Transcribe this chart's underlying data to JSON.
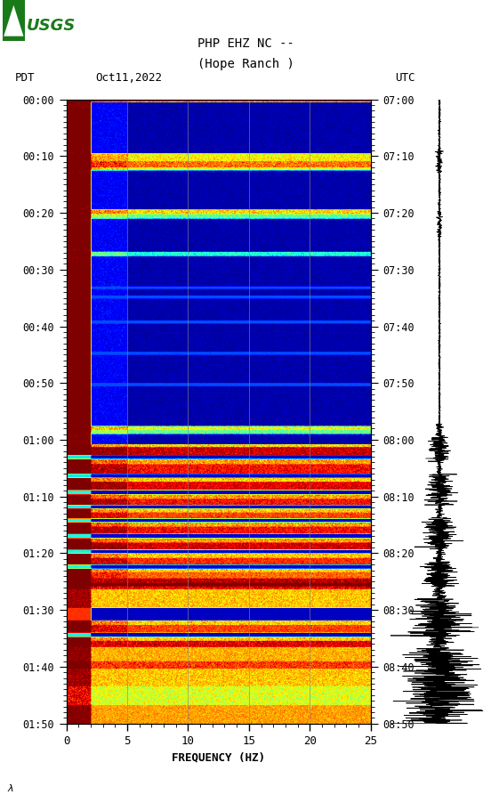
{
  "title_line1": "PHP EHZ NC --",
  "title_line2": "(Hope Ranch )",
  "date_label": "Oct11,2022",
  "tz_left": "PDT",
  "tz_right": "UTC",
  "freq_min": 0,
  "freq_max": 25,
  "left_times": [
    "00:00",
    "00:10",
    "00:20",
    "00:30",
    "00:40",
    "00:50",
    "01:00",
    "01:10",
    "01:20",
    "01:30",
    "01:40",
    "01:50"
  ],
  "right_times": [
    "07:00",
    "07:10",
    "07:20",
    "07:30",
    "07:40",
    "07:50",
    "08:00",
    "08:10",
    "08:20",
    "08:30",
    "08:40",
    "08:50"
  ],
  "freq_ticks": [
    0,
    5,
    10,
    15,
    20,
    25
  ],
  "xlabel": "FREQUENCY (HZ)",
  "bg_color": "#ffffff",
  "spectrogram_cmap": "jet",
  "seed": 42,
  "n_time": 1100,
  "n_freq": 500,
  "grid_color": "#888888",
  "seis_color": "#000000"
}
